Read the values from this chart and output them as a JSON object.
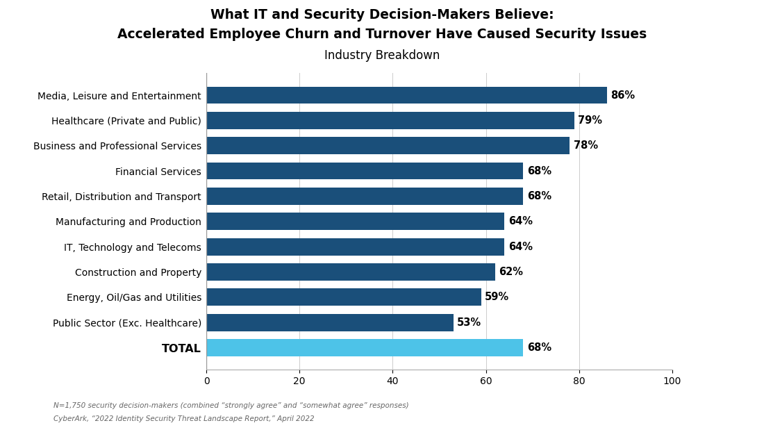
{
  "title_line1": "What IT and Security Decision-Makers Believe:",
  "title_line2": "Accelerated Employee Churn and Turnover Have Caused Security Issues",
  "subtitle": "Industry Breakdown",
  "categories": [
    "TOTAL",
    "Public Sector (Exc. Healthcare)",
    "Energy, Oil/Gas and Utilities",
    "Construction and Property",
    "IT, Technology and Telecoms",
    "Manufacturing and Production",
    "Retail, Distribution and Transport",
    "Financial Services",
    "Business and Professional Services",
    "Healthcare (Private and Public)",
    "Media, Leisure and Entertainment"
  ],
  "values": [
    68,
    53,
    59,
    62,
    64,
    64,
    68,
    68,
    78,
    79,
    86
  ],
  "bar_colors": [
    "#4dc3e8",
    "#1a4f7a",
    "#1a4f7a",
    "#1a4f7a",
    "#1a4f7a",
    "#1a4f7a",
    "#1a4f7a",
    "#1a4f7a",
    "#1a4f7a",
    "#1a4f7a",
    "#1a4f7a"
  ],
  "xlim": [
    0,
    100
  ],
  "xticks": [
    0,
    20,
    40,
    60,
    80,
    100
  ],
  "footnote1": "N=1,750 security decision-makers (combined “strongly agree” and “somewhat agree” responses)",
  "footnote2": "CyberArk, “2022 Identity Security Threat Landscape Report,” April 2022",
  "bg_color": "#ffffff",
  "grid_color": "#cccccc",
  "bar_label_fontsize": 10.5,
  "tick_fontsize": 10,
  "category_fontsize": 10,
  "title_fontsize": 13.5,
  "subtitle_fontsize": 12
}
